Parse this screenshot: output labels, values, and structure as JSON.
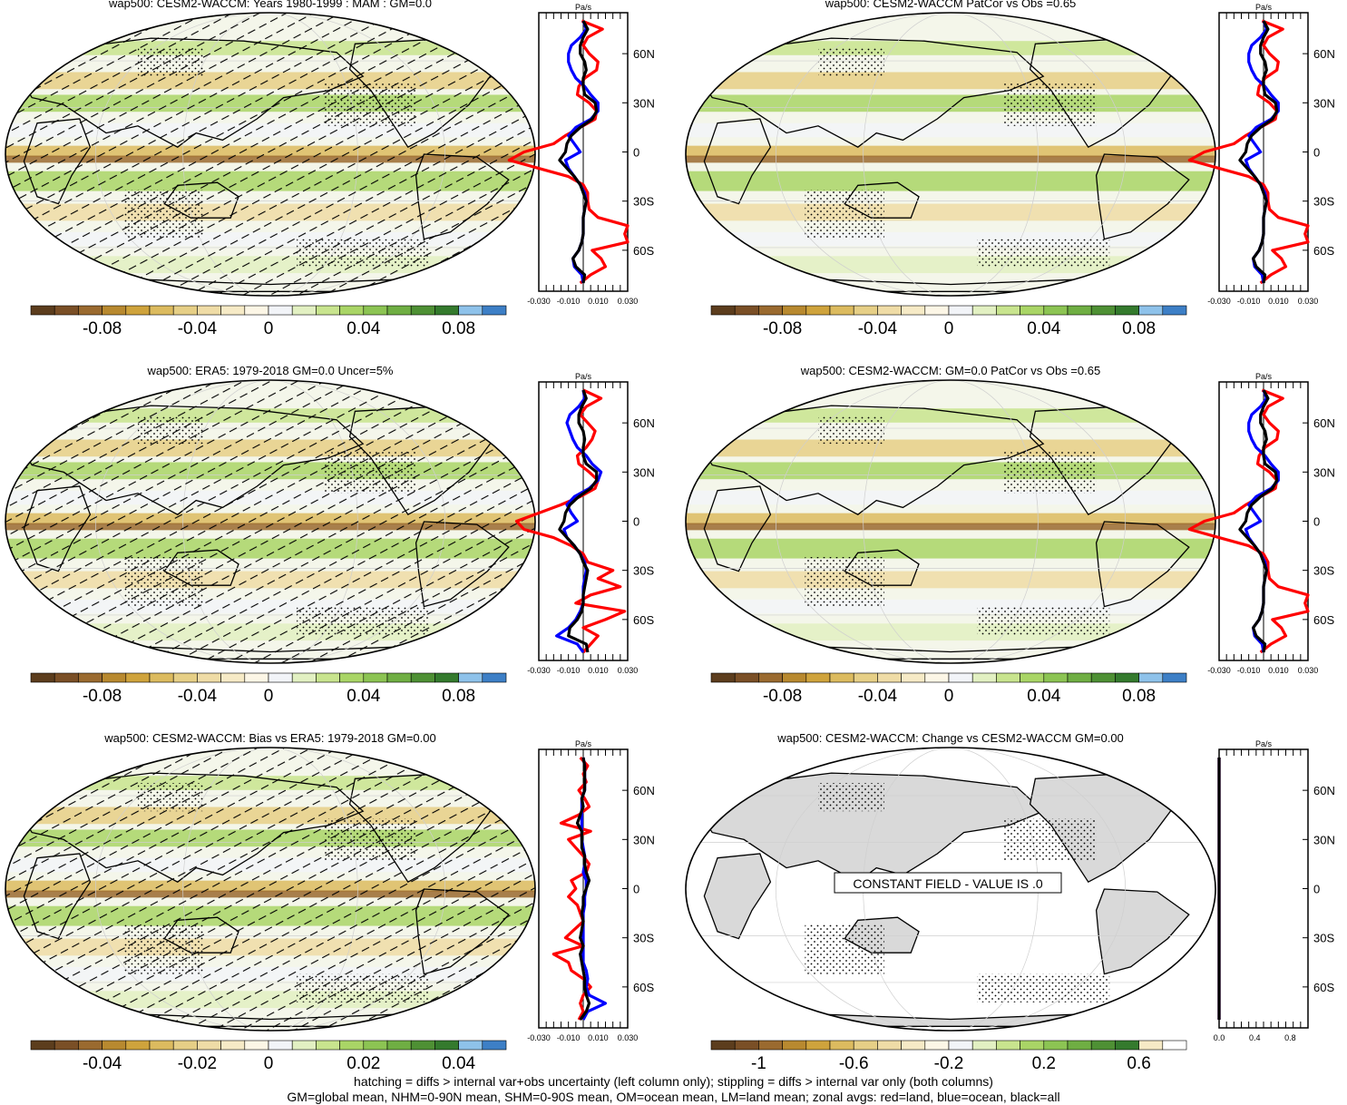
{
  "footer": {
    "line1": "hatching = diffs > internal var+obs uncertainty (left column only); stippling = diffs > internal var only (both columns)",
    "line2": "GM=global mean, NHM=0-90N mean, SHM=0-90S mean, OM=ocean mean, LM=land mean; zonal avgs: red=land, blue=ocean, black=all"
  },
  "colors": {
    "land_line": "#ff0000",
    "ocean_line": "#0000ff",
    "all_line": "#000000",
    "palette": [
      "#5c3d1d",
      "#7a4f26",
      "#9a6a2f",
      "#b8892f",
      "#cfa33c",
      "#dcbb5f",
      "#e6cf86",
      "#efdca6",
      "#f6eac6",
      "#fcf6e6",
      "#f2f4f8",
      "#e2f0c2",
      "#c8e48e",
      "#a9d566",
      "#8cc453",
      "#6fae43",
      "#4e9034",
      "#347a2d",
      "#8ec2ea",
      "#3d7fc6"
    ]
  },
  "chart_data": [
    {
      "type": "map",
      "title": "wap500: CESM2-WACCM: Years 1980-1999 : MAM : GM=0.0",
      "colorbar_ticks": [
        "-0.08",
        "-0.04",
        "0",
        "0.04",
        "0.08"
      ],
      "hatching": true,
      "stippling": "sparse",
      "zonal_avg": {
        "unit": "Pa/s",
        "x_ticks": [
          "-0.030",
          "-0.010",
          "0.010",
          "0.030"
        ],
        "x_range": [
          -0.03,
          0.03
        ],
        "y_ticks": [
          "60N",
          "30N",
          "0",
          "30S",
          "60S"
        ],
        "lat": [
          80,
          75,
          70,
          65,
          60,
          55,
          50,
          45,
          40,
          35,
          30,
          25,
          20,
          15,
          10,
          5,
          0,
          -5,
          -10,
          -15,
          -20,
          -25,
          -30,
          -35,
          -40,
          -45,
          -50,
          -55,
          -60,
          -65,
          -70,
          -75,
          -80
        ],
        "land": [
          -0.001,
          0.013,
          0.003,
          0.0,
          0.004,
          0.01,
          0.009,
          0.001,
          -0.003,
          -0.004,
          0.004,
          0.009,
          0.008,
          -0.002,
          -0.012,
          -0.02,
          -0.04,
          -0.05,
          -0.03,
          -0.01,
          0.0,
          0.003,
          0.003,
          0.004,
          0.01,
          0.03,
          0.028,
          0.03,
          0.006,
          0.012,
          0.015,
          0.005,
          -0.002
        ],
        "ocean": [
          0.0,
          0.002,
          -0.002,
          -0.008,
          -0.01,
          -0.01,
          -0.008,
          -0.005,
          0.001,
          0.005,
          0.01,
          0.01,
          0.005,
          -0.005,
          -0.01,
          -0.006,
          -0.002,
          -0.012,
          -0.01,
          -0.006,
          -0.002,
          0.001,
          0.002,
          0.001,
          0.0,
          0.0,
          0.0,
          -0.001,
          -0.003,
          -0.007,
          -0.006,
          -0.001,
          0.0
        ],
        "all": [
          0.0,
          0.003,
          0.0,
          -0.002,
          -0.002,
          0.001,
          0.002,
          0.0,
          0.0,
          0.001,
          0.008,
          0.009,
          0.006,
          -0.002,
          -0.008,
          -0.011,
          -0.012,
          -0.016,
          -0.011,
          -0.006,
          -0.002,
          0.0,
          0.002,
          0.001,
          0.0,
          0.0,
          0.0,
          -0.001,
          -0.003,
          -0.007,
          -0.005,
          0.001,
          0.0
        ]
      }
    },
    {
      "type": "map",
      "title": "wap500: CESM2-WACCM PatCor vs Obs =0.65",
      "colorbar_ticks": [
        "-0.08",
        "-0.04",
        "0",
        "0.04",
        "0.08"
      ],
      "hatching": false,
      "stippling": "sparse",
      "zonal_avg": {
        "unit": "Pa/s",
        "x_ticks": [
          "-0.030",
          "-0.010",
          "0.010",
          "0.030"
        ],
        "x_range": [
          -0.03,
          0.03
        ],
        "y_ticks": [
          "60N",
          "30N",
          "0",
          "30S",
          "60S"
        ],
        "lat": [
          80,
          75,
          70,
          65,
          60,
          55,
          50,
          45,
          40,
          35,
          30,
          25,
          20,
          15,
          10,
          5,
          0,
          -5,
          -10,
          -15,
          -20,
          -25,
          -30,
          -35,
          -40,
          -45,
          -50,
          -55,
          -60,
          -65,
          -70,
          -75,
          -80
        ],
        "land": [
          -0.001,
          0.013,
          0.003,
          0.0,
          0.004,
          0.01,
          0.009,
          0.001,
          -0.003,
          -0.004,
          0.004,
          0.009,
          0.008,
          -0.002,
          -0.012,
          -0.02,
          -0.04,
          -0.05,
          -0.03,
          -0.01,
          0.0,
          0.003,
          0.003,
          0.004,
          0.01,
          0.03,
          0.028,
          0.03,
          0.006,
          0.012,
          0.015,
          0.005,
          -0.002
        ],
        "ocean": [
          0.0,
          0.002,
          -0.002,
          -0.008,
          -0.01,
          -0.01,
          -0.008,
          -0.005,
          0.001,
          0.005,
          0.01,
          0.01,
          0.005,
          -0.005,
          -0.01,
          -0.006,
          -0.002,
          -0.012,
          -0.01,
          -0.006,
          -0.002,
          0.001,
          0.002,
          0.001,
          0.0,
          0.0,
          0.0,
          -0.001,
          -0.003,
          -0.007,
          -0.006,
          -0.001,
          0.0
        ],
        "all": [
          0.0,
          0.003,
          0.0,
          -0.002,
          -0.002,
          0.001,
          0.002,
          0.0,
          0.0,
          0.001,
          0.008,
          0.009,
          0.006,
          -0.002,
          -0.008,
          -0.011,
          -0.012,
          -0.016,
          -0.011,
          -0.006,
          -0.002,
          0.0,
          0.002,
          0.001,
          0.0,
          0.0,
          0.0,
          -0.001,
          -0.003,
          -0.007,
          -0.005,
          0.001,
          0.0
        ]
      }
    },
    {
      "type": "map",
      "title": "wap500: ERA5: 1979-2018 GM=0.0 Uncer=5%",
      "colorbar_ticks": [
        "-0.08",
        "-0.04",
        "0",
        "0.04",
        "0.08"
      ],
      "hatching": true,
      "stippling": "sparse",
      "zonal_avg": {
        "unit": "Pa/s",
        "x_ticks": [
          "-0.030",
          "-0.010",
          "0.010",
          "0.030"
        ],
        "x_range": [
          -0.03,
          0.03
        ],
        "y_ticks": [
          "60N",
          "30N",
          "0",
          "30S",
          "60S"
        ],
        "lat": [
          80,
          75,
          70,
          65,
          60,
          55,
          50,
          45,
          40,
          35,
          30,
          25,
          20,
          15,
          10,
          5,
          0,
          -5,
          -10,
          -15,
          -20,
          -25,
          -30,
          -35,
          -40,
          -45,
          -50,
          -55,
          -60,
          -65,
          -70,
          -75,
          -80
        ],
        "land": [
          0.0,
          0.012,
          0.002,
          -0.002,
          0.003,
          0.008,
          0.006,
          0.002,
          -0.004,
          -0.003,
          0.004,
          0.01,
          0.008,
          -0.002,
          -0.015,
          -0.03,
          -0.045,
          -0.04,
          -0.02,
          -0.008,
          0.0,
          0.003,
          0.02,
          0.01,
          0.025,
          0.005,
          -0.005,
          0.028,
          0.015,
          0.0,
          0.01,
          0.005,
          0.0
        ],
        "ocean": [
          0.0,
          0.001,
          -0.003,
          -0.009,
          -0.011,
          -0.009,
          -0.007,
          -0.004,
          0.002,
          0.006,
          0.012,
          0.01,
          0.004,
          -0.006,
          -0.011,
          -0.008,
          -0.004,
          -0.013,
          -0.011,
          -0.006,
          -0.002,
          0.001,
          0.002,
          0.001,
          0.0,
          0.0,
          0.0,
          -0.002,
          -0.005,
          -0.01,
          -0.018,
          -0.004,
          0.0
        ],
        "all": [
          0.0,
          0.002,
          -0.001,
          -0.003,
          -0.003,
          0.0,
          0.001,
          0.0,
          0.0,
          0.002,
          0.009,
          0.009,
          0.005,
          -0.003,
          -0.009,
          -0.012,
          -0.013,
          -0.016,
          -0.011,
          -0.006,
          -0.002,
          0.0,
          0.003,
          0.002,
          0.001,
          0.0,
          0.0,
          -0.001,
          -0.004,
          -0.009,
          -0.01,
          0.002,
          0.003
        ]
      }
    },
    {
      "type": "map",
      "title": "wap500: CESM2-WACCM: GM=0.0 PatCor vs Obs =0.65",
      "colorbar_ticks": [
        "-0.08",
        "-0.04",
        "0",
        "0.04",
        "0.08"
      ],
      "hatching": false,
      "stippling": "sparse",
      "zonal_avg": {
        "unit": "Pa/s",
        "x_ticks": [
          "-0.030",
          "-0.010",
          "0.010",
          "0.030"
        ],
        "x_range": [
          -0.03,
          0.03
        ],
        "y_ticks": [
          "60N",
          "30N",
          "0",
          "30S",
          "60S"
        ],
        "lat": [
          80,
          75,
          70,
          65,
          60,
          55,
          50,
          45,
          40,
          35,
          30,
          25,
          20,
          15,
          10,
          5,
          0,
          -5,
          -10,
          -15,
          -20,
          -25,
          -30,
          -35,
          -40,
          -45,
          -50,
          -55,
          -60,
          -65,
          -70,
          -75,
          -80
        ],
        "land": [
          -0.001,
          0.013,
          0.003,
          0.0,
          0.004,
          0.01,
          0.009,
          0.001,
          -0.003,
          -0.004,
          0.004,
          0.009,
          0.008,
          -0.002,
          -0.012,
          -0.02,
          -0.04,
          -0.05,
          -0.03,
          -0.01,
          0.0,
          0.003,
          0.003,
          0.004,
          0.01,
          0.03,
          0.028,
          0.03,
          0.006,
          0.012,
          0.015,
          0.005,
          -0.002
        ],
        "ocean": [
          0.0,
          0.002,
          -0.002,
          -0.008,
          -0.01,
          -0.01,
          -0.008,
          -0.005,
          0.001,
          0.005,
          0.01,
          0.01,
          0.005,
          -0.005,
          -0.01,
          -0.006,
          -0.002,
          -0.012,
          -0.01,
          -0.006,
          -0.002,
          0.001,
          0.002,
          0.001,
          0.0,
          0.0,
          0.0,
          -0.001,
          -0.003,
          -0.007,
          -0.006,
          -0.001,
          0.0
        ],
        "all": [
          0.0,
          0.003,
          0.0,
          -0.002,
          -0.002,
          0.001,
          0.002,
          0.0,
          0.0,
          0.001,
          0.008,
          0.009,
          0.006,
          -0.002,
          -0.008,
          -0.011,
          -0.012,
          -0.016,
          -0.011,
          -0.006,
          -0.002,
          0.0,
          0.002,
          0.001,
          0.0,
          0.0,
          0.0,
          -0.001,
          -0.003,
          -0.007,
          -0.005,
          0.001,
          0.0
        ]
      }
    },
    {
      "type": "map",
      "title": "wap500: CESM2-WACCM: Bias vs ERA5: 1979-2018 GM=0.00",
      "colorbar_ticks": [
        "-0.04",
        "-0.02",
        "0",
        "0.02",
        "0.04"
      ],
      "hatching": true,
      "stippling": "sparse",
      "zonal_avg": {
        "unit": "Pa/s",
        "x_ticks": [
          "-0.030",
          "-0.010",
          "0.010",
          "0.030"
        ],
        "x_range": [
          -0.03,
          0.03
        ],
        "y_ticks": [
          "60N",
          "30N",
          "0",
          "30S",
          "60S"
        ],
        "lat": [
          80,
          75,
          70,
          65,
          60,
          55,
          50,
          45,
          40,
          35,
          30,
          25,
          20,
          15,
          10,
          5,
          0,
          -5,
          -10,
          -15,
          -20,
          -25,
          -30,
          -35,
          -40,
          -45,
          -50,
          -55,
          -60,
          -65,
          -70,
          -75,
          -80
        ],
        "land": [
          -0.002,
          0.003,
          0.0,
          0.002,
          -0.003,
          0.001,
          0.004,
          -0.003,
          -0.015,
          0.005,
          -0.01,
          -0.005,
          0.0,
          0.004,
          0.002,
          -0.008,
          -0.005,
          -0.01,
          -0.004,
          -0.002,
          0.0,
          -0.006,
          -0.012,
          0.0,
          -0.02,
          -0.01,
          -0.008,
          0.0,
          0.005,
          0.0,
          -0.002,
          0.0,
          -0.003
        ],
        "ocean": [
          0.0,
          0.001,
          0.001,
          0.001,
          0.001,
          -0.001,
          -0.001,
          -0.001,
          -0.001,
          -0.001,
          -0.001,
          0.0,
          0.001,
          0.001,
          0.0,
          0.002,
          0.002,
          0.001,
          0.001,
          0.0,
          0.0,
          0.0,
          0.0,
          0.0,
          0.0,
          0.0,
          0.002,
          0.003,
          0.002,
          0.004,
          0.015,
          0.003,
          0.0
        ],
        "all": [
          0.0,
          0.001,
          0.001,
          0.001,
          0.001,
          -0.001,
          0.0,
          -0.002,
          -0.004,
          -0.001,
          -0.001,
          -0.001,
          0.001,
          0.001,
          0.002,
          0.004,
          0.002,
          0.0,
          0.0,
          -0.001,
          0.0,
          -0.001,
          -0.002,
          0.0,
          -0.002,
          -0.001,
          0.0,
          0.001,
          0.001,
          0.002,
          0.004,
          0.002,
          -0.002
        ]
      }
    },
    {
      "type": "map",
      "title": "wap500: CESM2-WACCM: Change vs CESM2-WACCM GM=0.00",
      "colorbar_ticks": [
        "-1",
        "-0.6",
        "-0.2",
        "0.2",
        "0.6"
      ],
      "hatching": false,
      "stippling": "sparse",
      "note": "CONSTANT FIELD - VALUE IS .0",
      "zonal_avg": {
        "unit": "Pa/s",
        "x_ticks": [
          "0.0",
          "0.4",
          "0.8"
        ],
        "x_range": [
          0.0,
          1.0
        ],
        "y_ticks": [
          "60N",
          "30N",
          "0",
          "30S",
          "60S"
        ],
        "lat": [
          80,
          -80
        ],
        "land": [
          0.0,
          0.0
        ],
        "ocean": [
          0.0,
          0.0
        ],
        "all": [
          0.0,
          0.0
        ]
      }
    }
  ]
}
